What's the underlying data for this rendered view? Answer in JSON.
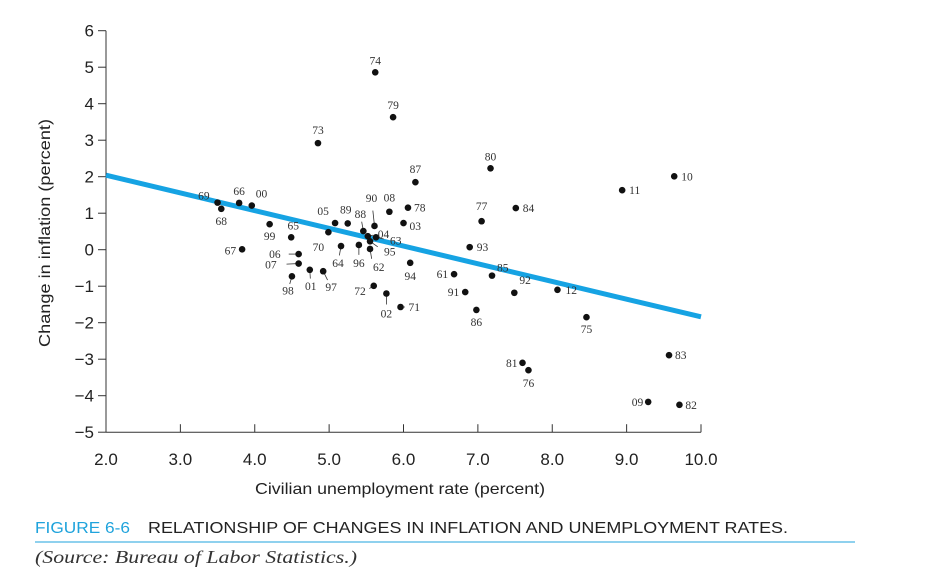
{
  "chart_data": {
    "type": "scatter",
    "title": "",
    "xlabel": "Civilian unemployment rate (percent)",
    "ylabel": "Change in inflation (percent)",
    "xlim": [
      2.0,
      10.0
    ],
    "ylim": [
      -5,
      6
    ],
    "xticks": [
      "2.0",
      "3.0",
      "4.0",
      "5.0",
      "6.0",
      "7.0",
      "8.0",
      "9.0",
      "10.0"
    ],
    "yticks": [
      "6",
      "5",
      "4",
      "3",
      "2",
      "1",
      "0",
      "−1",
      "−2",
      "−3",
      "−4",
      "−5"
    ],
    "grid": false,
    "colors": {
      "fit_line": "#16a3e3",
      "points": "#111111",
      "caption_accent": "#1fa3dc"
    },
    "points": [
      {
        "label": "61",
        "x": 6.68,
        "y": -0.67
      },
      {
        "label": "62",
        "x": 5.55,
        "y": 0.02
      },
      {
        "label": "63",
        "x": 5.63,
        "y": 0.34
      },
      {
        "label": "64",
        "x": 5.16,
        "y": 0.1
      },
      {
        "label": "65",
        "x": 4.49,
        "y": 0.34
      },
      {
        "label": "66",
        "x": 3.79,
        "y": 1.28
      },
      {
        "label": "67",
        "x": 3.83,
        "y": 0.01
      },
      {
        "label": "68",
        "x": 3.55,
        "y": 1.12
      },
      {
        "label": "69",
        "x": 3.5,
        "y": 1.29
      },
      {
        "label": "70",
        "x": 4.99,
        "y": 0.48
      },
      {
        "label": "71",
        "x": 5.96,
        "y": -1.57
      },
      {
        "label": "72",
        "x": 5.6,
        "y": -0.99
      },
      {
        "label": "73",
        "x": 4.85,
        "y": 2.92
      },
      {
        "label": "74",
        "x": 5.62,
        "y": 4.86
      },
      {
        "label": "75",
        "x": 8.46,
        "y": -1.85
      },
      {
        "label": "76",
        "x": 7.68,
        "y": -3.3
      },
      {
        "label": "77",
        "x": 7.05,
        "y": 0.78
      },
      {
        "label": "78",
        "x": 6.06,
        "y": 1.15
      },
      {
        "label": "79",
        "x": 5.86,
        "y": 3.63
      },
      {
        "label": "80",
        "x": 7.17,
        "y": 2.23
      },
      {
        "label": "81",
        "x": 7.6,
        "y": -3.1
      },
      {
        "label": "82",
        "x": 9.71,
        "y": -4.25
      },
      {
        "label": "83",
        "x": 9.57,
        "y": -2.89
      },
      {
        "label": "84",
        "x": 7.51,
        "y": 1.14
      },
      {
        "label": "85",
        "x": 7.19,
        "y": -0.71
      },
      {
        "label": "86",
        "x": 6.98,
        "y": -1.65
      },
      {
        "label": "87",
        "x": 6.16,
        "y": 1.85
      },
      {
        "label": "88",
        "x": 5.46,
        "y": 0.51
      },
      {
        "label": "89",
        "x": 5.25,
        "y": 0.72
      },
      {
        "label": "90",
        "x": 5.61,
        "y": 0.65
      },
      {
        "label": "91",
        "x": 6.83,
        "y": -1.16
      },
      {
        "label": "92",
        "x": 7.49,
        "y": -1.18
      },
      {
        "label": "93",
        "x": 6.89,
        "y": 0.07
      },
      {
        "label": "94",
        "x": 6.09,
        "y": -0.36
      },
      {
        "label": "95",
        "x": 5.55,
        "y": 0.23
      },
      {
        "label": "96",
        "x": 5.4,
        "y": 0.13
      },
      {
        "label": "97",
        "x": 4.92,
        "y": -0.59
      },
      {
        "label": "98",
        "x": 4.5,
        "y": -0.73
      },
      {
        "label": "99",
        "x": 4.2,
        "y": 0.7
      },
      {
        "label": "00",
        "x": 3.96,
        "y": 1.21
      },
      {
        "label": "01",
        "x": 4.74,
        "y": -0.55
      },
      {
        "label": "02",
        "x": 5.77,
        "y": -1.2
      },
      {
        "label": "03",
        "x": 6.0,
        "y": 0.73
      },
      {
        "label": "04",
        "x": 5.52,
        "y": 0.37
      },
      {
        "label": "05",
        "x": 5.08,
        "y": 0.73
      },
      {
        "label": "06",
        "x": 4.59,
        "y": -0.12
      },
      {
        "label": "07",
        "x": 4.59,
        "y": -0.38
      },
      {
        "label": "08",
        "x": 5.81,
        "y": 1.04
      },
      {
        "label": "09",
        "x": 9.29,
        "y": -4.17
      },
      {
        "label": "10",
        "x": 9.64,
        "y": 2.01
      },
      {
        "label": "11",
        "x": 8.94,
        "y": 1.63
      },
      {
        "label": "12",
        "x": 8.07,
        "y": -1.1
      }
    ],
    "fit_line": {
      "x": [
        2.0,
        10.0
      ],
      "y": [
        2.04,
        -1.84
      ]
    }
  },
  "caption": {
    "figure_number": "FIGURE 6-6",
    "title": "RELATIONSHIP OF CHANGES IN INFLATION AND UNEMPLOYMENT RATES.",
    "source": "(Source: Bureau of Labor Statistics.)"
  }
}
